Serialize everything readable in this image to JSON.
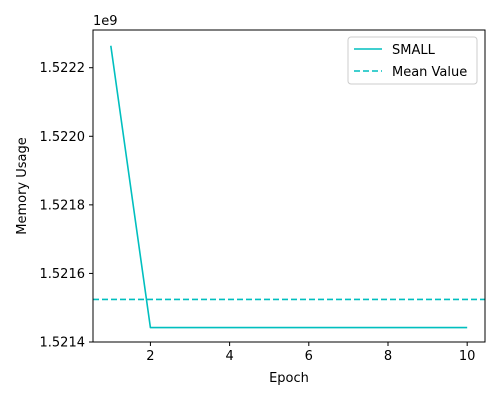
{
  "chart_data": {
    "type": "line",
    "xlabel": "Epoch",
    "ylabel": "Memory Usage",
    "y_offset_label": "1e9",
    "xlim": [
      0.55,
      10.45
    ],
    "ylim": [
      1.5214,
      1.52231
    ],
    "x_ticks": [
      2,
      4,
      6,
      8,
      10
    ],
    "x_tick_labels": [
      "2",
      "4",
      "6",
      "8",
      "10"
    ],
    "y_ticks": [
      1.5214,
      1.5216,
      1.5218,
      1.522,
      1.5222
    ],
    "y_tick_labels": [
      "1.5214",
      "1.5216",
      "1.5218",
      "1.5220",
      "1.5222"
    ],
    "grid": false,
    "legend_position": "top-right",
    "series": [
      {
        "name": "SMALL",
        "style": "solid",
        "color": "#00bfbf",
        "x": [
          1,
          2,
          3,
          4,
          5,
          6,
          7,
          8,
          9,
          10
        ],
        "y": [
          1.522264,
          1.521442,
          1.521442,
          1.521442,
          1.521442,
          1.521442,
          1.521442,
          1.521442,
          1.521442,
          1.521442
        ]
      }
    ],
    "reference_lines": [
      {
        "name": "Mean Value",
        "style": "dashed",
        "color": "#00bfbf",
        "y": 1.521524
      }
    ]
  }
}
